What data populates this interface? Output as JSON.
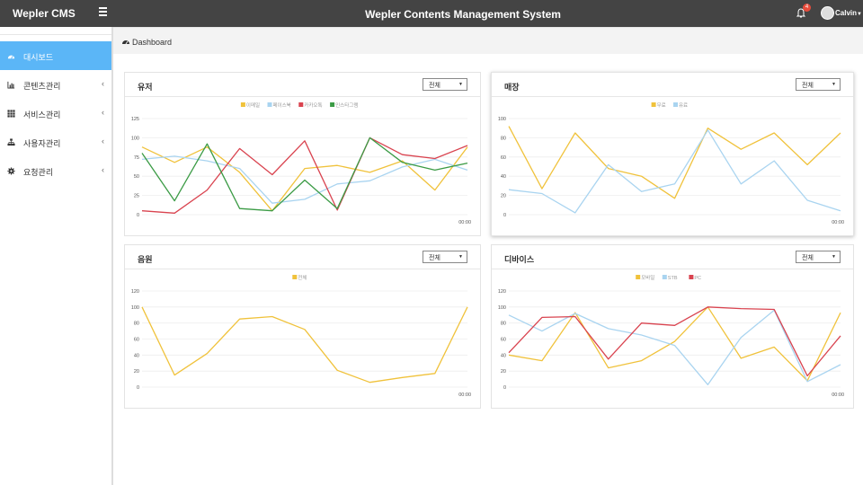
{
  "app": {
    "brand": "Wepler CMS",
    "system_title": "Wepler Contents Management System",
    "notification_count": "4",
    "username": "Calvin"
  },
  "sidebar": {
    "items": [
      {
        "label": "대시보드",
        "icon": "dashboard-icon",
        "active": true
      },
      {
        "label": "콘텐츠관리",
        "icon": "bar-chart-icon",
        "active": false
      },
      {
        "label": "서비스관리",
        "icon": "grid-icon",
        "active": false
      },
      {
        "label": "사용자관리",
        "icon": "sitemap-icon",
        "active": false
      },
      {
        "label": "요청관리",
        "icon": "gear-icon",
        "active": false
      }
    ]
  },
  "breadcrumb": {
    "label": "Dashboard"
  },
  "colors": {
    "accent": "#5bb6f7",
    "topbar": "#444444",
    "series_yellow": "#f0c23b",
    "series_blue": "#a9d4f0",
    "series_red": "#d9434f",
    "series_green": "#3b9b45"
  },
  "panels": [
    {
      "title": "유저",
      "select": "전체"
    },
    {
      "title": "매장",
      "select": "전체"
    },
    {
      "title": "음원",
      "select": "전체"
    },
    {
      "title": "디바이스",
      "select": "전체"
    }
  ],
  "chart_data": [
    {
      "type": "line",
      "title": "유저",
      "x_label_last": "00:00",
      "ylim": [
        0,
        125
      ],
      "yticks": [
        0,
        25,
        50,
        75,
        100,
        125
      ],
      "series": [
        {
          "name": "이메일",
          "color": "#f0c23b",
          "values": [
            88,
            68,
            88,
            55,
            5,
            60,
            64,
            55,
            70,
            32,
            88
          ]
        },
        {
          "name": "페이스북",
          "color": "#a9d4f0",
          "values": [
            72,
            76,
            70,
            60,
            15,
            20,
            40,
            44,
            62,
            72,
            58
          ]
        },
        {
          "name": "카카오톡",
          "color": "#d9434f",
          "values": [
            5,
            2,
            32,
            86,
            52,
            96,
            6,
            100,
            78,
            73,
            90
          ]
        },
        {
          "name": "인스타그램",
          "color": "#3b9b45",
          "values": [
            80,
            18,
            92,
            8,
            5,
            45,
            8,
            100,
            68,
            58,
            67
          ]
        }
      ]
    },
    {
      "type": "line",
      "title": "매장",
      "x_label_last": "00:00",
      "ylim": [
        0,
        100
      ],
      "yticks": [
        0,
        20,
        40,
        60,
        80,
        100
      ],
      "series": [
        {
          "name": "무료",
          "color": "#f0c23b",
          "values": [
            92,
            27,
            85,
            48,
            40,
            17,
            90,
            68,
            85,
            52,
            85
          ]
        },
        {
          "name": "유료",
          "color": "#a9d4f0",
          "values": [
            26,
            22,
            2,
            52,
            24,
            32,
            88,
            32,
            56,
            15,
            4
          ]
        }
      ]
    },
    {
      "type": "line",
      "title": "음원",
      "x_label_last": "00:00",
      "ylim": [
        0,
        120
      ],
      "yticks": [
        0,
        20,
        40,
        60,
        80,
        100,
        120
      ],
      "series": [
        {
          "name": "전체",
          "color": "#f0c23b",
          "values": [
            100,
            15,
            42,
            85,
            88,
            72,
            21,
            6,
            12,
            17,
            100
          ]
        }
      ]
    },
    {
      "type": "line",
      "title": "디바이스",
      "x_label_last": "00:00",
      "ylim": [
        0,
        120
      ],
      "yticks": [
        0,
        20,
        40,
        60,
        80,
        100,
        120
      ],
      "series": [
        {
          "name": "모바일",
          "color": "#f0c23b",
          "values": [
            40,
            33,
            93,
            24,
            33,
            57,
            100,
            36,
            50,
            8,
            93
          ]
        },
        {
          "name": "STB",
          "color": "#a9d4f0",
          "values": [
            90,
            70,
            92,
            73,
            65,
            52,
            3,
            62,
            96,
            7,
            28
          ]
        },
        {
          "name": "PC",
          "color": "#d9434f",
          "values": [
            43,
            87,
            88,
            35,
            80,
            77,
            100,
            98,
            97,
            14,
            64
          ]
        }
      ]
    }
  ]
}
